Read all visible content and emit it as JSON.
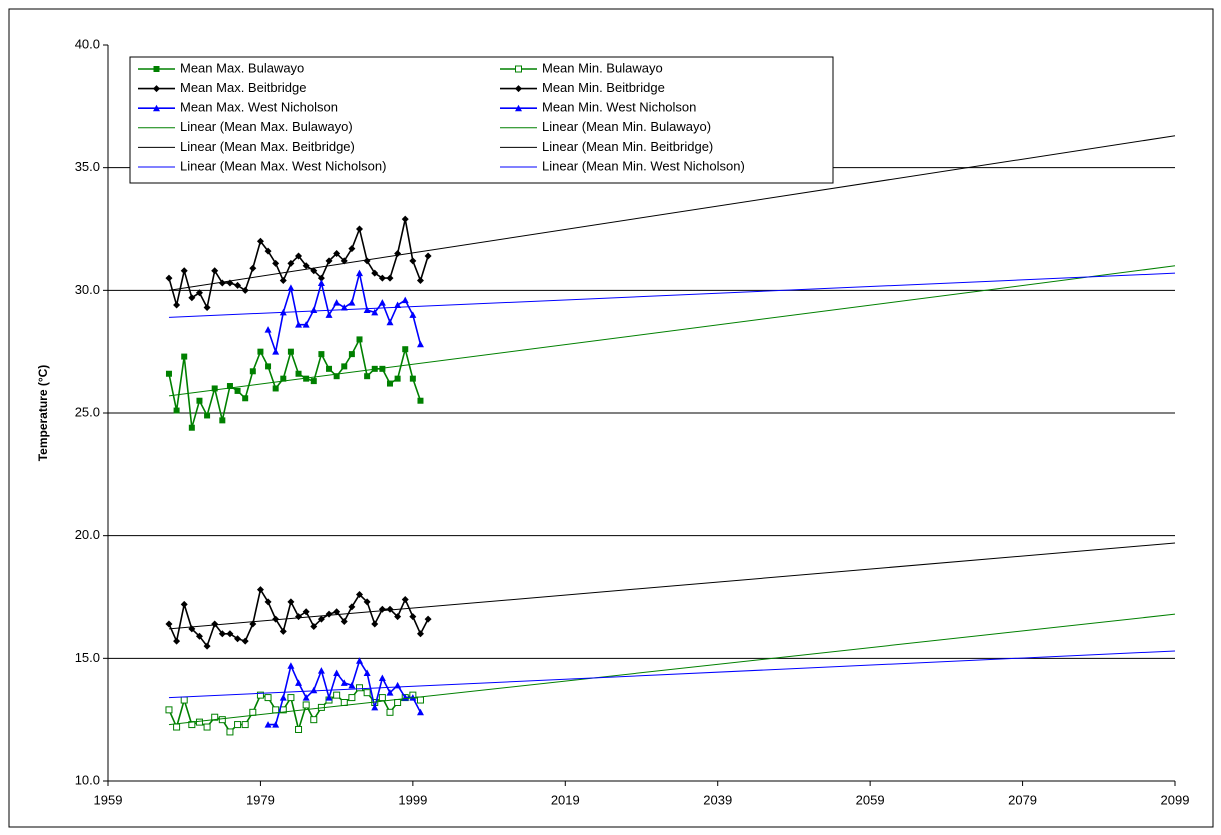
{
  "chart_data": {
    "type": "line",
    "ylabel": "Temperature (°C)",
    "xlim": [
      1959,
      2099
    ],
    "xticks": [
      1959,
      1979,
      1999,
      2019,
      2039,
      2059,
      2079,
      2099
    ],
    "ylim": [
      10,
      40
    ],
    "yticks": [
      {
        "value": 10,
        "label": "10.0"
      },
      {
        "value": 15,
        "label": "15.0"
      },
      {
        "value": 20,
        "label": "20.0"
      },
      {
        "value": 25,
        "label": "25.0"
      },
      {
        "value": 30,
        "label": "30.0"
      },
      {
        "value": 35,
        "label": "35.0"
      },
      {
        "value": 40,
        "label": "40.0"
      }
    ],
    "grid": true,
    "legend": "upper left",
    "series": [
      {
        "name": "Mean Max. Bulawayo",
        "color": "#008000",
        "marker": "square",
        "x": [
          1967,
          1968,
          1969,
          1970,
          1971,
          1972,
          1973,
          1974,
          1975,
          1976,
          1977,
          1978,
          1979,
          1980,
          1981,
          1982,
          1983,
          1984,
          1985,
          1986,
          1987,
          1988,
          1989,
          1990,
          1991,
          1992,
          1993,
          1994,
          1995,
          1996,
          1997,
          1998,
          1999,
          2000
        ],
        "values": [
          26.6,
          25.1,
          27.3,
          24.4,
          25.5,
          24.9,
          26.0,
          24.7,
          26.1,
          25.9,
          25.6,
          26.7,
          27.5,
          26.9,
          26.0,
          26.4,
          27.5,
          26.6,
          26.4,
          26.3,
          27.4,
          26.8,
          26.5,
          26.9,
          27.4,
          28.0,
          26.5,
          26.8,
          26.8,
          26.2,
          26.4,
          27.6,
          26.4,
          25.5
        ]
      },
      {
        "name": "Mean Min. Bulawayo",
        "color": "#008000",
        "marker": "square-open",
        "x": [
          1967,
          1968,
          1969,
          1970,
          1971,
          1972,
          1973,
          1974,
          1975,
          1976,
          1977,
          1978,
          1979,
          1980,
          1981,
          1982,
          1983,
          1984,
          1985,
          1986,
          1987,
          1988,
          1989,
          1990,
          1991,
          1992,
          1993,
          1994,
          1995,
          1996,
          1997,
          1998,
          1999,
          2000
        ],
        "values": [
          12.9,
          12.2,
          13.3,
          12.3,
          12.4,
          12.2,
          12.6,
          12.5,
          12.0,
          12.3,
          12.3,
          12.8,
          13.5,
          13.4,
          12.9,
          12.9,
          13.4,
          12.1,
          13.1,
          12.5,
          13.0,
          13.3,
          13.5,
          13.2,
          13.4,
          13.8,
          13.6,
          13.2,
          13.4,
          12.8,
          13.2,
          13.4,
          13.5,
          13.3
        ]
      },
      {
        "name": "Mean Max. Beitbridge",
        "color": "#000000",
        "marker": "diamond",
        "x": [
          1967,
          1968,
          1969,
          1970,
          1971,
          1972,
          1973,
          1974,
          1975,
          1976,
          1977,
          1978,
          1979,
          1980,
          1981,
          1982,
          1983,
          1984,
          1985,
          1986,
          1987,
          1988,
          1989,
          1990,
          1991,
          1992,
          1993,
          1994,
          1995,
          1996,
          1997,
          1998,
          1999,
          2000,
          2001
        ],
        "values": [
          30.5,
          29.4,
          30.8,
          29.7,
          29.9,
          29.3,
          30.8,
          30.3,
          30.3,
          30.2,
          30.0,
          30.9,
          32.0,
          31.6,
          31.1,
          30.4,
          31.1,
          31.4,
          31.0,
          30.8,
          30.5,
          31.2,
          31.5,
          31.2,
          31.7,
          32.5,
          31.2,
          30.7,
          30.5,
          30.5,
          31.5,
          32.9,
          31.2,
          30.4,
          31.4
        ]
      },
      {
        "name": "Mean Min. Beitbridge",
        "color": "#000000",
        "marker": "diamond",
        "x": [
          1967,
          1968,
          1969,
          1970,
          1971,
          1972,
          1973,
          1974,
          1975,
          1976,
          1977,
          1978,
          1979,
          1980,
          1981,
          1982,
          1983,
          1984,
          1985,
          1986,
          1987,
          1988,
          1989,
          1990,
          1991,
          1992,
          1993,
          1994,
          1995,
          1996,
          1997,
          1998,
          1999,
          2000,
          2001
        ],
        "values": [
          16.4,
          15.7,
          17.2,
          16.2,
          15.9,
          15.5,
          16.4,
          16.0,
          16.0,
          15.8,
          15.7,
          16.4,
          17.8,
          17.3,
          16.6,
          16.1,
          17.3,
          16.7,
          16.9,
          16.3,
          16.6,
          16.8,
          16.9,
          16.5,
          17.1,
          17.6,
          17.3,
          16.4,
          17.0,
          17.0,
          16.7,
          17.4,
          16.7,
          16.0,
          16.6
        ]
      },
      {
        "name": "Mean Max. West Nicholson",
        "color": "#0000ff",
        "marker": "triangle",
        "x": [
          1980,
          1981,
          1982,
          1983,
          1984,
          1985,
          1986,
          1987,
          1988,
          1989,
          1990,
          1991,
          1992,
          1993,
          1994,
          1995,
          1996,
          1997,
          1998,
          1999,
          2000
        ],
        "values": [
          28.4,
          27.5,
          29.1,
          30.1,
          28.6,
          28.6,
          29.2,
          30.3,
          29.0,
          29.5,
          29.3,
          29.5,
          30.7,
          29.2,
          29.1,
          29.5,
          28.7,
          29.4,
          29.6,
          29.0,
          27.8
        ]
      },
      {
        "name": "Mean Min. West Nicholson",
        "color": "#0000ff",
        "marker": "triangle",
        "x": [
          1980,
          1981,
          1982,
          1983,
          1984,
          1985,
          1986,
          1987,
          1988,
          1989,
          1990,
          1991,
          1992,
          1993,
          1994,
          1995,
          1996,
          1997,
          1998,
          1999,
          2000
        ],
        "values": [
          12.3,
          12.3,
          13.4,
          14.7,
          14.0,
          13.4,
          13.7,
          14.5,
          13.4,
          14.4,
          14.0,
          13.9,
          14.9,
          14.4,
          13.0,
          14.2,
          13.6,
          13.9,
          13.4,
          13.4,
          12.8
        ]
      },
      {
        "name": "Linear (Mean Max. Bulawayo)",
        "color": "#008000",
        "x": [
          1967,
          2099
        ],
        "values": [
          25.7,
          31.0
        ]
      },
      {
        "name": "Linear (Mean Min. Bulawayo)",
        "color": "#008000",
        "x": [
          1967,
          2099
        ],
        "values": [
          12.3,
          16.8
        ]
      },
      {
        "name": "Linear (Mean Max. Beitbridge)",
        "color": "#000000",
        "x": [
          1967,
          2099
        ],
        "values": [
          30.0,
          36.3
        ]
      },
      {
        "name": "Linear (Mean Min. Beitbridge)",
        "color": "#000000",
        "x": [
          1967,
          2099
        ],
        "values": [
          16.2,
          19.7
        ]
      },
      {
        "name": "Linear (Mean Max. West Nicholson)",
        "color": "#0000ff",
        "x": [
          1967,
          2099
        ],
        "values": [
          28.9,
          30.7
        ]
      },
      {
        "name": "Linear (Mean Min. West Nicholson)",
        "color": "#0000ff",
        "x": [
          1967,
          2099
        ],
        "values": [
          13.4,
          15.3
        ]
      }
    ]
  }
}
